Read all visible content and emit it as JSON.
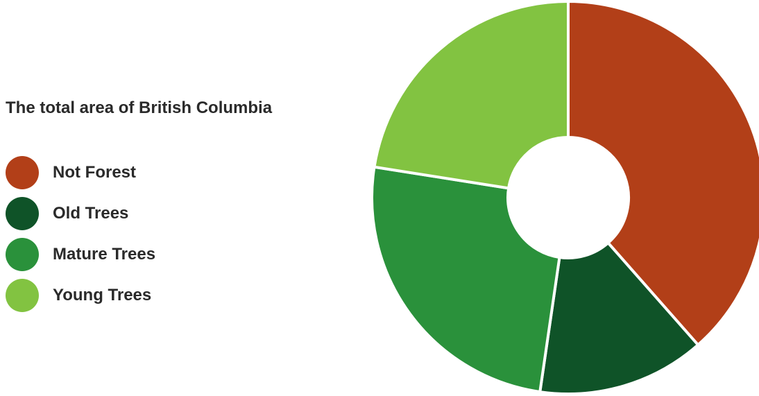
{
  "chart_data": {
    "type": "pie",
    "variant": "donut",
    "title": "The total area of British Columbia",
    "legend_position": "left",
    "slices": [
      {
        "label": "Not Forest",
        "value": 38.5,
        "color": "#b23f18"
      },
      {
        "label": "Old Trees",
        "value": 13.8,
        "color": "#0f5328"
      },
      {
        "label": "Mature Trees",
        "value": 25.2,
        "color": "#2a913b"
      },
      {
        "label": "Young Trees",
        "value": 22.5,
        "color": "#82c341"
      }
    ]
  }
}
